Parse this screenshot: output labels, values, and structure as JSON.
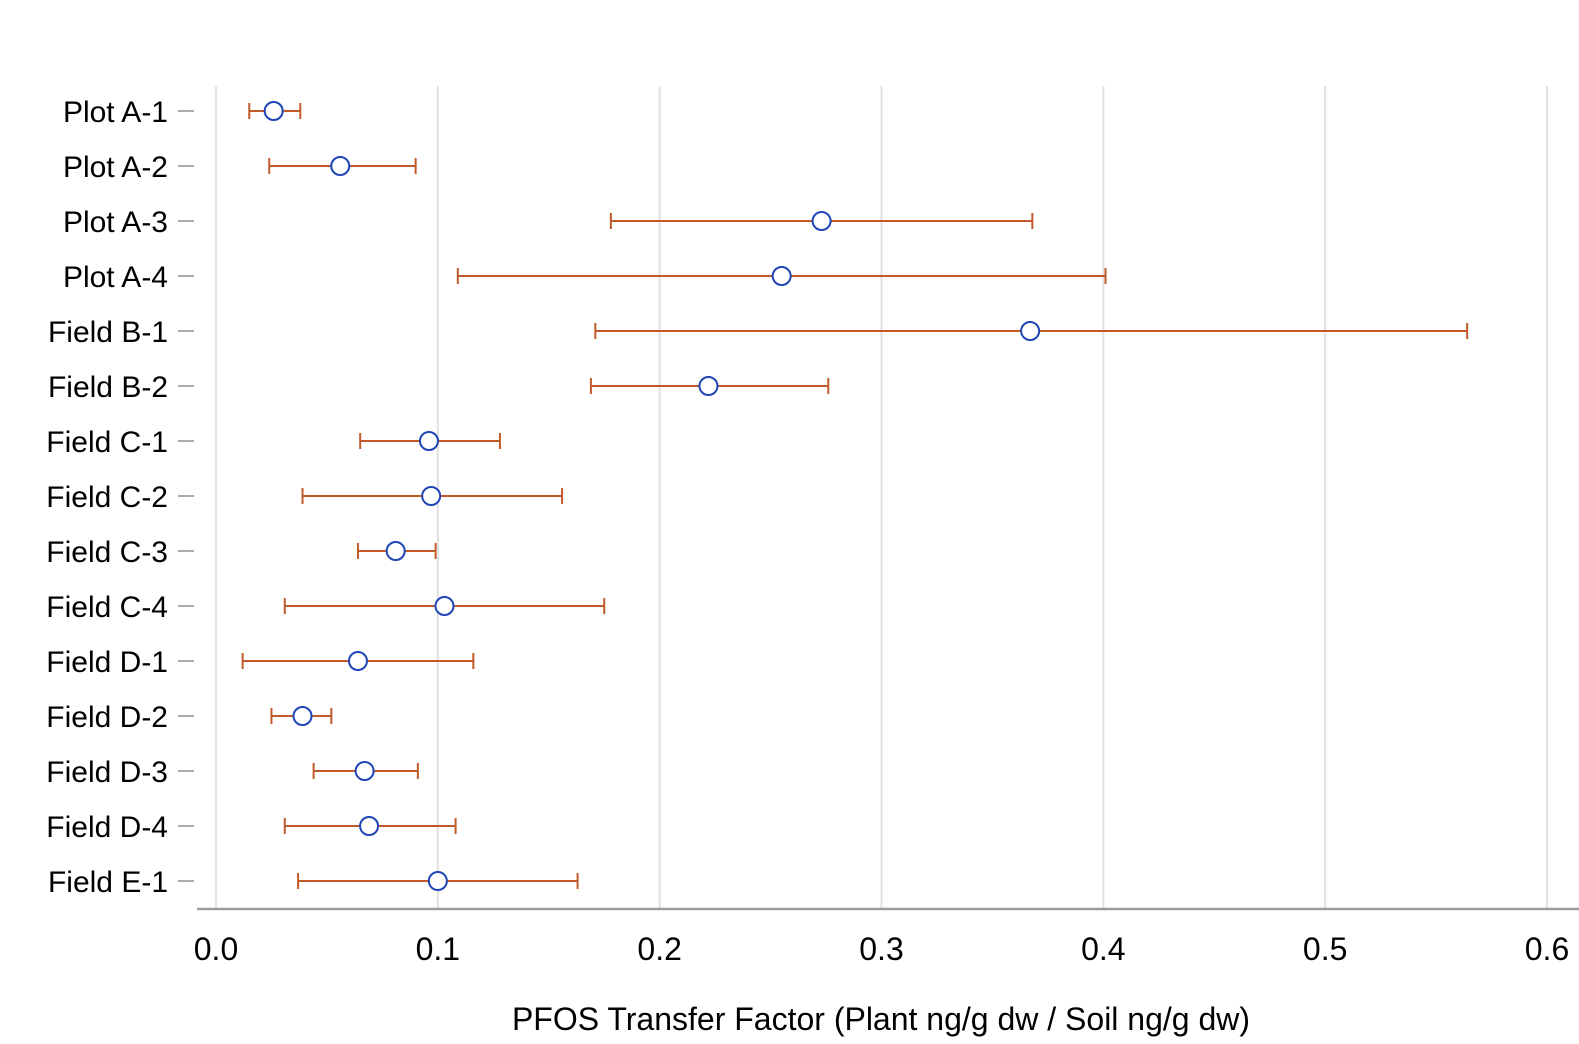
{
  "chart_data": {
    "type": "scatter",
    "xlabel": "PFOS Transfer Factor (Plant ng/g dw / Soil ng/g dw)",
    "ylabel": "",
    "xlim": [
      0.0,
      0.6
    ],
    "x_ticks": [
      "0.0",
      "0.1",
      "0.2",
      "0.3",
      "0.4",
      "0.5",
      "0.6"
    ],
    "grid": "vertical",
    "series": [
      {
        "values": [
          {
            "label": "Plot A-1",
            "mean": 0.026,
            "low": 0.015,
            "high": 0.038
          },
          {
            "label": "Plot A-2",
            "mean": 0.056,
            "low": 0.024,
            "high": 0.09
          },
          {
            "label": "Plot A-3",
            "mean": 0.273,
            "low": 0.178,
            "high": 0.368
          },
          {
            "label": "Plot A-4",
            "mean": 0.255,
            "low": 0.109,
            "high": 0.401
          },
          {
            "label": "Field B-1",
            "mean": 0.367,
            "low": 0.171,
            "high": 0.564
          },
          {
            "label": "Field B-2",
            "mean": 0.222,
            "low": 0.169,
            "high": 0.276
          },
          {
            "label": "Field C-1",
            "mean": 0.096,
            "low": 0.065,
            "high": 0.128
          },
          {
            "label": "Field C-2",
            "mean": 0.097,
            "low": 0.039,
            "high": 0.156
          },
          {
            "label": "Field C-3",
            "mean": 0.081,
            "low": 0.064,
            "high": 0.099
          },
          {
            "label": "Field C-4",
            "mean": 0.103,
            "low": 0.031,
            "high": 0.175
          },
          {
            "label": "Field D-1",
            "mean": 0.064,
            "low": 0.012,
            "high": 0.116
          },
          {
            "label": "Field D-2",
            "mean": 0.039,
            "low": 0.025,
            "high": 0.052
          },
          {
            "label": "Field D-3",
            "mean": 0.067,
            "low": 0.044,
            "high": 0.091
          },
          {
            "label": "Field D-4",
            "mean": 0.069,
            "low": 0.031,
            "high": 0.108
          },
          {
            "label": "Field E-1",
            "mean": 0.1,
            "low": 0.037,
            "high": 0.163
          }
        ]
      }
    ]
  },
  "colors": {
    "point": "#1f46b6",
    "error_bar": "#c05a2b",
    "grid": "#e1e1e1",
    "axis": "#9c9c9c",
    "text": "#000000"
  }
}
